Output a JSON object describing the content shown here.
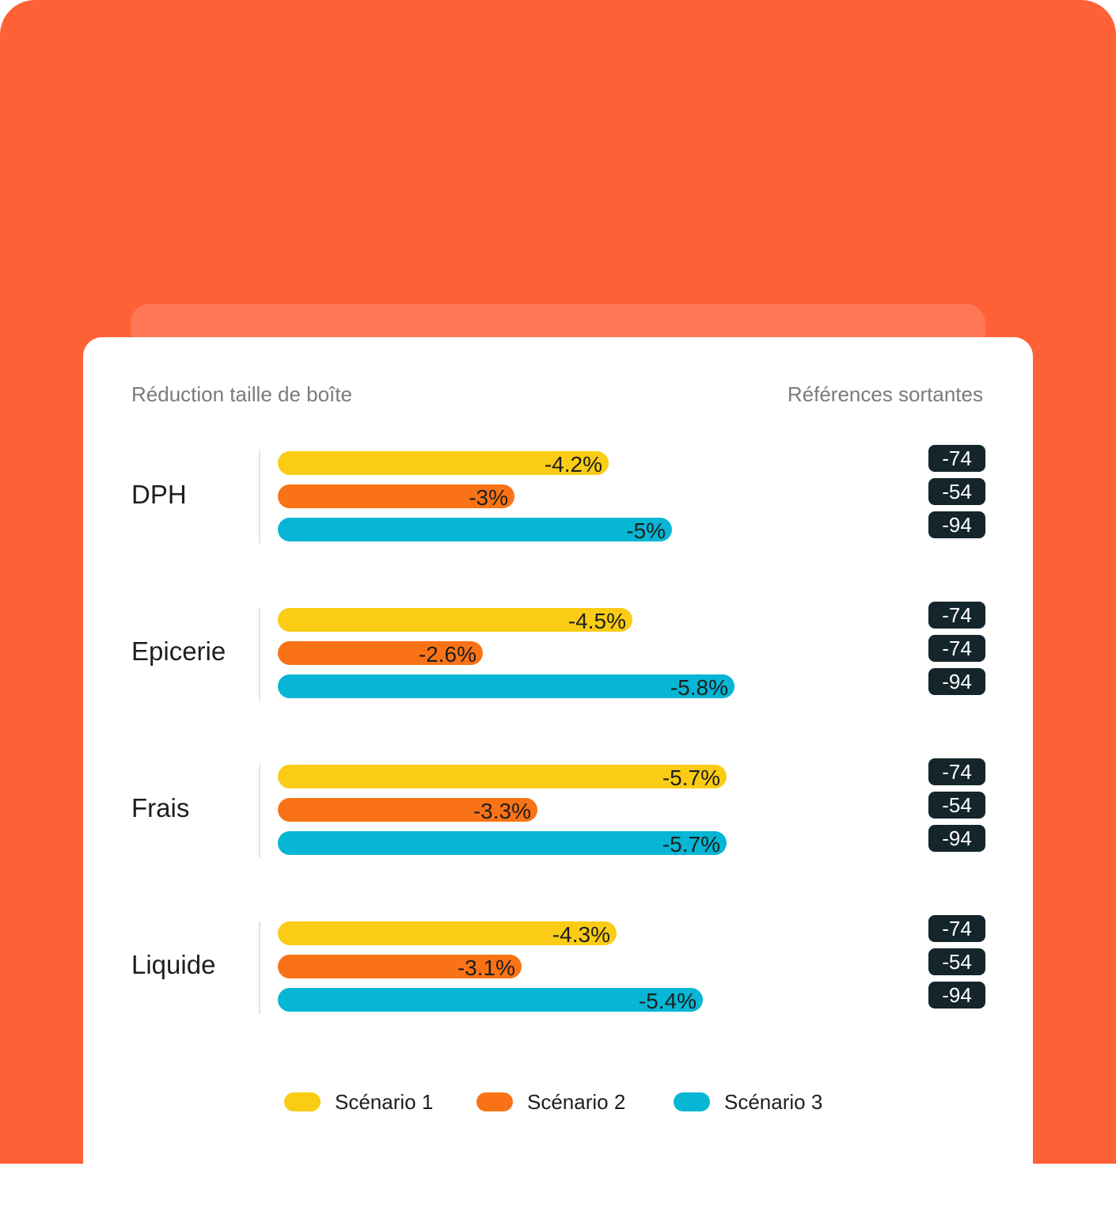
{
  "header": {
    "left": "Réduction taille de boîte",
    "right": "Références sortantes"
  },
  "colors": {
    "background": "#FF6136",
    "scenario_1": "#FACC15",
    "scenario_2": "#F97316",
    "scenario_3": "#06B6D4",
    "badge": "#14252B"
  },
  "chart_data": {
    "type": "bar",
    "orientation": "horizontal",
    "categories": [
      "DPH",
      "Epicerie",
      "Frais",
      "Liquide"
    ],
    "series": [
      {
        "name": "Scénario 1",
        "values": [
          -4.2,
          -4.5,
          -5.7,
          -4.3
        ],
        "labels": [
          "-4.2%",
          "-4.5%",
          "-5.7%",
          "-4.3%"
        ]
      },
      {
        "name": "Scénario 2",
        "values": [
          -3,
          -2.6,
          -3.3,
          -3.1
        ],
        "labels": [
          "-3%",
          "-2.6%",
          "-3.3%",
          "-3.1%"
        ]
      },
      {
        "name": "Scénario 3",
        "values": [
          -5,
          -5.8,
          -5.7,
          -5.4
        ],
        "labels": [
          "-5%",
          "-5.8%",
          "-5.7%",
          "-5.4%"
        ]
      }
    ],
    "references_sortantes": [
      [
        "-74",
        "-54",
        "-94"
      ],
      [
        "-74",
        "-74",
        "-94"
      ],
      [
        "-74",
        "-54",
        "-94"
      ],
      [
        "-74",
        "-54",
        "-94"
      ]
    ],
    "legend": [
      "Scénario 1",
      "Scénario 2",
      "Scénario 3"
    ],
    "legend_position": "bottom",
    "grid": false
  }
}
